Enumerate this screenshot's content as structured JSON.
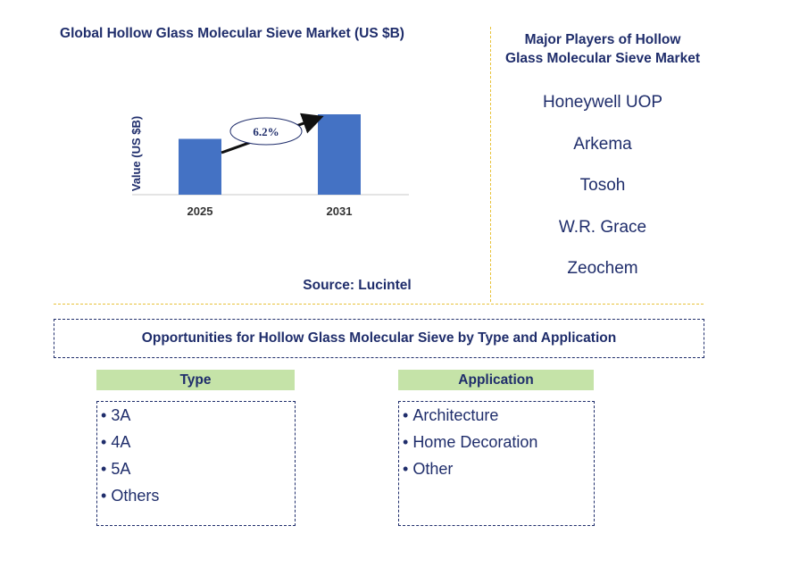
{
  "chart_data": {
    "type": "bar",
    "title": "Global Hollow Glass Molecular Sieve Market (US $B)",
    "categories": [
      "2025",
      "2031"
    ],
    "values": [
      1.0,
      1.44
    ],
    "ylabel": "Value (US $B)",
    "xlabel": "",
    "ylim": [
      0,
      1.6
    ],
    "bar_color": "#4472c4",
    "annotation": {
      "label": "6.2%",
      "type": "CAGR arrow",
      "from": "2025",
      "to": "2031"
    },
    "source": "Source: Lucintel"
  },
  "players": {
    "title_line1": "Major Players of Hollow",
    "title_line2": "Glass Molecular Sieve Market",
    "items": [
      "Honeywell UOP",
      "Arkema",
      "Tosoh",
      "W.R. Grace",
      "Zeochem"
    ]
  },
  "opportunities": {
    "title": "Opportunities for Hollow Glass Molecular Sieve by Type and Application",
    "type": {
      "header": "Type",
      "items": [
        "3A",
        "4A",
        "5A",
        "Others"
      ]
    },
    "application": {
      "header": "Application",
      "items": [
        "Architecture",
        "Home Decoration",
        "Other"
      ]
    }
  },
  "colors": {
    "text": "#1f2d6b",
    "header_bg": "#c5e3a8",
    "divider": "#e8c23a",
    "bar": "#4472c4"
  }
}
